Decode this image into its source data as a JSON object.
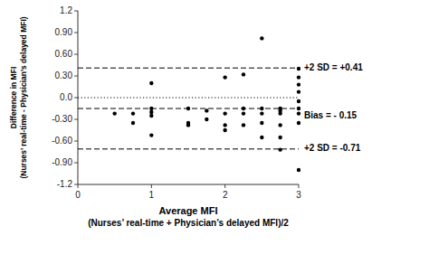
{
  "chart_data": {
    "type": "scatter",
    "x_label": [
      "Average MFI",
      "(Nurses’ real-time + Physician’s delayed MFI)/2"
    ],
    "y_label": [
      "Difference in MFI",
      "(Nurses’ real-time - Physician’s delayed MFI)"
    ],
    "x": [
      0.5,
      0.75,
      0.75,
      1.0,
      1.0,
      1.0,
      1.0,
      1.0,
      1.5,
      1.5,
      1.5,
      1.75,
      1.75,
      2.0,
      2.0,
      2.0,
      2.0,
      2.25,
      2.25,
      2.25,
      2.25,
      2.5,
      2.5,
      2.5,
      2.5,
      2.5,
      2.75,
      2.75,
      2.75,
      2.75,
      2.75,
      2.75,
      3.0,
      3.0,
      3.0,
      3.0,
      3.0,
      3.0,
      3.0,
      3.0,
      3.0
    ],
    "values": [
      -0.22,
      -0.35,
      -0.22,
      0.2,
      -0.52,
      -0.2,
      -0.15,
      -0.25,
      -0.35,
      -0.15,
      -0.38,
      -0.18,
      -0.3,
      0.28,
      -0.22,
      -0.38,
      -0.45,
      0.32,
      -0.15,
      -0.22,
      -0.38,
      -0.15,
      -0.22,
      -0.35,
      -0.55,
      0.82,
      -0.18,
      -0.22,
      -0.38,
      -0.55,
      -0.15,
      -0.72,
      0.4,
      0.28,
      0.18,
      0.08,
      -0.05,
      -0.15,
      -0.22,
      -0.35,
      -1.0
    ],
    "color": "#000000",
    "lines": [
      {
        "value": 0.41,
        "label": "+2 SD = +0.41",
        "line_style": "dashed",
        "color": "#000000"
      },
      {
        "value": -0.15,
        "label": "Bias = - 0.15",
        "line_style": "dashed",
        "color": "#000000"
      },
      {
        "value": -0.71,
        "label": "+2 SD = -0.71",
        "line_style": "dashed",
        "color": "#000000"
      },
      {
        "value": 0.0,
        "line_style": "dotted",
        "color": "#000000"
      }
    ],
    "xlim": [
      0,
      3.0
    ],
    "ylim": [
      -1.2,
      1.2
    ],
    "xticks": [
      0,
      1,
      2,
      3
    ],
    "yticks": [
      -1.2,
      {
        "value": -0.9,
        "label": "-0.90"
      },
      {
        "value": -0.6,
        "label": "-0.60"
      },
      {
        "value": -0.3,
        "label": "-0.30"
      },
      {
        "value": 0.0,
        "label": "0.0"
      },
      {
        "value": 0.3,
        "label": "0.30"
      },
      {
        "value": 0.6,
        "label": "0.60"
      },
      {
        "value": 0.9,
        "label": "0.90"
      },
      1.2
    ],
    "grid": false
  }
}
